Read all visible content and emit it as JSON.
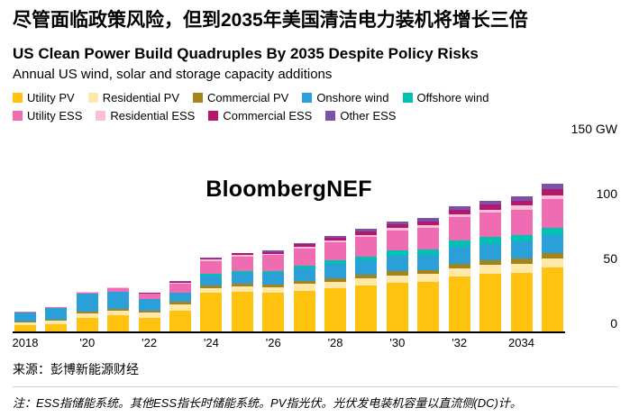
{
  "header": {
    "title_zh": "尽管面临政策风险，但到2035年美国清洁电力装机将增长三倍",
    "title_en": "US Clean Power Build Quadruples By 2035 Despite Policy Risks",
    "subtitle": "Annual US wind, solar and storage capacity additions"
  },
  "watermark": "BloombergNEF",
  "footer": {
    "source": "来源：彭博新能源财经",
    "note": "注：ESS指储能系统。其他ESS指长时储能系统。PV指光伏。光伏发电装机容量以直流侧(DC)计。"
  },
  "chart_data": {
    "type": "bar",
    "stacked": true,
    "title": "US Clean Power Build Quadruples By 2035 Despite Policy Risks",
    "subtitle": "Annual US wind, solar and storage capacity additions",
    "unit": "GW",
    "ylim": [
      0,
      150
    ],
    "yticks": [
      0,
      50,
      100,
      150
    ],
    "ytick_labels": [
      "0",
      "50",
      "100",
      "150 GW"
    ],
    "grid": false,
    "legend_position": "top",
    "x": [
      2018,
      2019,
      2020,
      2021,
      2022,
      2023,
      2024,
      2025,
      2026,
      2027,
      2028,
      2029,
      2030,
      2031,
      2032,
      2033,
      2034,
      2035
    ],
    "xtick_labels": [
      "2018",
      "",
      "'20",
      "",
      "'22",
      "",
      "'24",
      "",
      "'26",
      "",
      "'28",
      "",
      "'30",
      "",
      "'32",
      "",
      "2034",
      ""
    ],
    "legend_rows": [
      [
        0,
        1,
        2,
        3,
        4
      ],
      [
        5,
        6,
        7,
        8
      ]
    ],
    "series": [
      {
        "name": "Utility PV",
        "color": "#FFC20E",
        "values": [
          5,
          6,
          11,
          13,
          11,
          16,
          30,
          31,
          30,
          32,
          34,
          36,
          38,
          39,
          43,
          45,
          46,
          50
        ]
      },
      {
        "name": "Residential PV",
        "color": "#FFE8A8",
        "values": [
          2,
          2.5,
          3,
          3.5,
          4,
          5,
          4,
          4,
          4.5,
          5,
          5,
          5.5,
          6,
          6,
          6.5,
          7,
          7,
          7
        ]
      },
      {
        "name": "Commercial PV",
        "color": "#A3841C",
        "values": [
          1,
          1,
          1.5,
          1.5,
          1.5,
          2,
          2,
          2,
          2,
          2.5,
          2.5,
          3,
          3,
          3,
          3.5,
          3.5,
          4,
          4
        ]
      },
      {
        "name": "Onshore wind",
        "color": "#2B9FD8",
        "values": [
          7,
          9,
          14,
          13,
          9,
          7,
          8,
          9,
          9,
          10,
          11,
          11,
          12,
          12,
          13,
          13,
          13,
          14
        ]
      },
      {
        "name": "Offshore wind",
        "color": "#00C2B3",
        "values": [
          0,
          0,
          0,
          0,
          0,
          0.5,
          1,
          1.5,
          2,
          2,
          3,
          3,
          4,
          4,
          5,
          5,
          5,
          6
        ]
      },
      {
        "name": "Utility ESS",
        "color": "#F06CB2",
        "values": [
          0.3,
          0.5,
          1,
          3,
          4,
          7,
          10,
          11,
          12,
          13,
          14,
          15,
          16,
          17,
          18,
          19,
          20,
          22
        ]
      },
      {
        "name": "Residential ESS",
        "color": "#F9BFD9",
        "values": [
          0.1,
          0.2,
          0.3,
          0.5,
          0.5,
          0.7,
          1,
          1,
          1,
          1.5,
          1.5,
          2,
          2,
          2,
          2.5,
          2.5,
          3,
          3
        ]
      },
      {
        "name": "Commercial ESS",
        "color": "#B2186B",
        "values": [
          0,
          0,
          0.2,
          0.3,
          0.5,
          0.8,
          1,
          1.5,
          1.5,
          2,
          2,
          2.5,
          3,
          3,
          3.5,
          4,
          4,
          5
        ]
      },
      {
        "name": "Other ESS",
        "color": "#7B52A8",
        "values": [
          0,
          0,
          0,
          0,
          0.2,
          0.3,
          0.5,
          0.5,
          1,
          1,
          1.5,
          2,
          2,
          2.5,
          3,
          3,
          3.5,
          4
        ]
      }
    ]
  }
}
